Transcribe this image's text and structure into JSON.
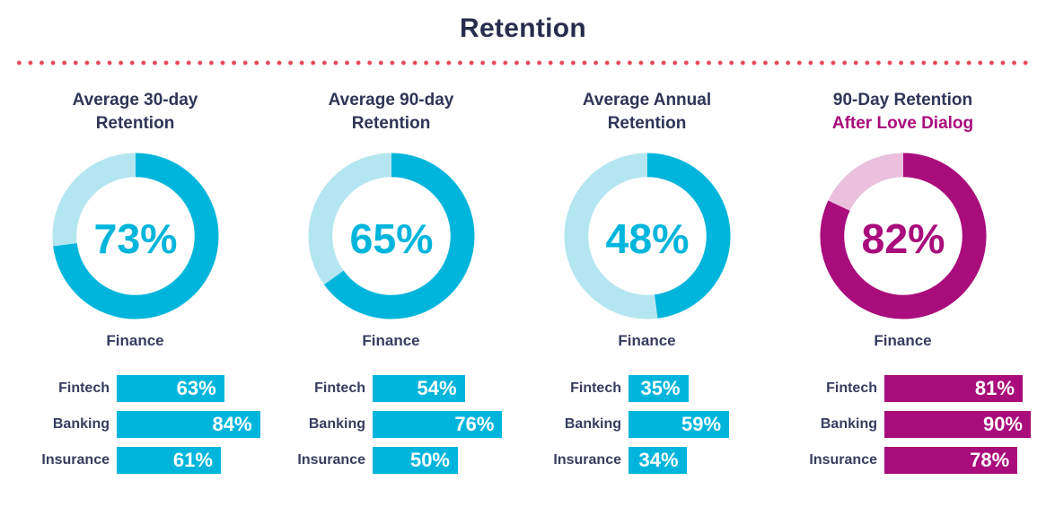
{
  "page": {
    "title": "Retention",
    "background": "#FFFFFF"
  },
  "divider": {
    "style": "dotted-line",
    "color": "#E8495B"
  },
  "colors": {
    "navy_title": "#272D4D",
    "navy_text": "#363D60",
    "cyan": "#00B5DC",
    "cyan_light": "#B4E6F2",
    "magenta": "#A90C7B",
    "magenta_light": "#EAC0DC",
    "bar_value_text": "#FFFFFF"
  },
  "chart_data": [
    {
      "type": "donut+bar",
      "title_lines": [
        "Average 30-day",
        "Retention"
      ],
      "title_line2_accent": false,
      "donut": {
        "type": "donut",
        "value_pct": 73,
        "center_label": "73%",
        "series_label": "Finance",
        "color": "#00B5DC",
        "track_color": "#B4E6F2",
        "start_angle_deg": 0,
        "direction": "clockwise"
      },
      "bars": {
        "type": "bar",
        "orientation": "horizontal",
        "categories": [
          "Fintech",
          "Banking",
          "Insurance"
        ],
        "values_pct": [
          63,
          84,
          61
        ],
        "value_labels": [
          "63%",
          "84%",
          "61%"
        ],
        "color": "#00B5DC",
        "xlim": [
          0,
          100
        ]
      }
    },
    {
      "type": "donut+bar",
      "title_lines": [
        "Average 90-day",
        "Retention"
      ],
      "title_line2_accent": false,
      "donut": {
        "type": "donut",
        "value_pct": 65,
        "center_label": "65%",
        "series_label": "Finance",
        "color": "#00B5DC",
        "track_color": "#B4E6F2",
        "start_angle_deg": 0,
        "direction": "clockwise"
      },
      "bars": {
        "type": "bar",
        "orientation": "horizontal",
        "categories": [
          "Fintech",
          "Banking",
          "Insurance"
        ],
        "values_pct": [
          54,
          76,
          50
        ],
        "value_labels": [
          "54%",
          "76%",
          "50%"
        ],
        "color": "#00B5DC",
        "xlim": [
          0,
          100
        ]
      }
    },
    {
      "type": "donut+bar",
      "title_lines": [
        "Average Annual",
        "Retention"
      ],
      "title_line2_accent": false,
      "donut": {
        "type": "donut",
        "value_pct": 48,
        "center_label": "48%",
        "series_label": "Finance",
        "color": "#00B5DC",
        "track_color": "#B4E6F2",
        "start_angle_deg": 0,
        "direction": "clockwise"
      },
      "bars": {
        "type": "bar",
        "orientation": "horizontal",
        "categories": [
          "Fintech",
          "Banking",
          "Insurance"
        ],
        "values_pct": [
          35,
          59,
          34
        ],
        "value_labels": [
          "35%",
          "59%",
          "34%"
        ],
        "color": "#00B5DC",
        "xlim": [
          0,
          100
        ]
      }
    },
    {
      "type": "donut+bar",
      "title_lines": [
        "90-Day Retention",
        "After Love Dialog"
      ],
      "title_line2_accent": true,
      "donut": {
        "type": "donut",
        "value_pct": 82,
        "center_label": "82%",
        "series_label": "Finance",
        "color": "#A90C7B",
        "track_color": "#EAC0DC",
        "start_angle_deg": 0,
        "direction": "clockwise"
      },
      "bars": {
        "type": "bar",
        "orientation": "horizontal",
        "categories": [
          "Fintech",
          "Banking",
          "Insurance"
        ],
        "values_pct": [
          81,
          90,
          78
        ],
        "value_labels": [
          "81%",
          "90%",
          "78%"
        ],
        "color": "#A90C7B",
        "xlim": [
          0,
          100
        ]
      }
    }
  ]
}
